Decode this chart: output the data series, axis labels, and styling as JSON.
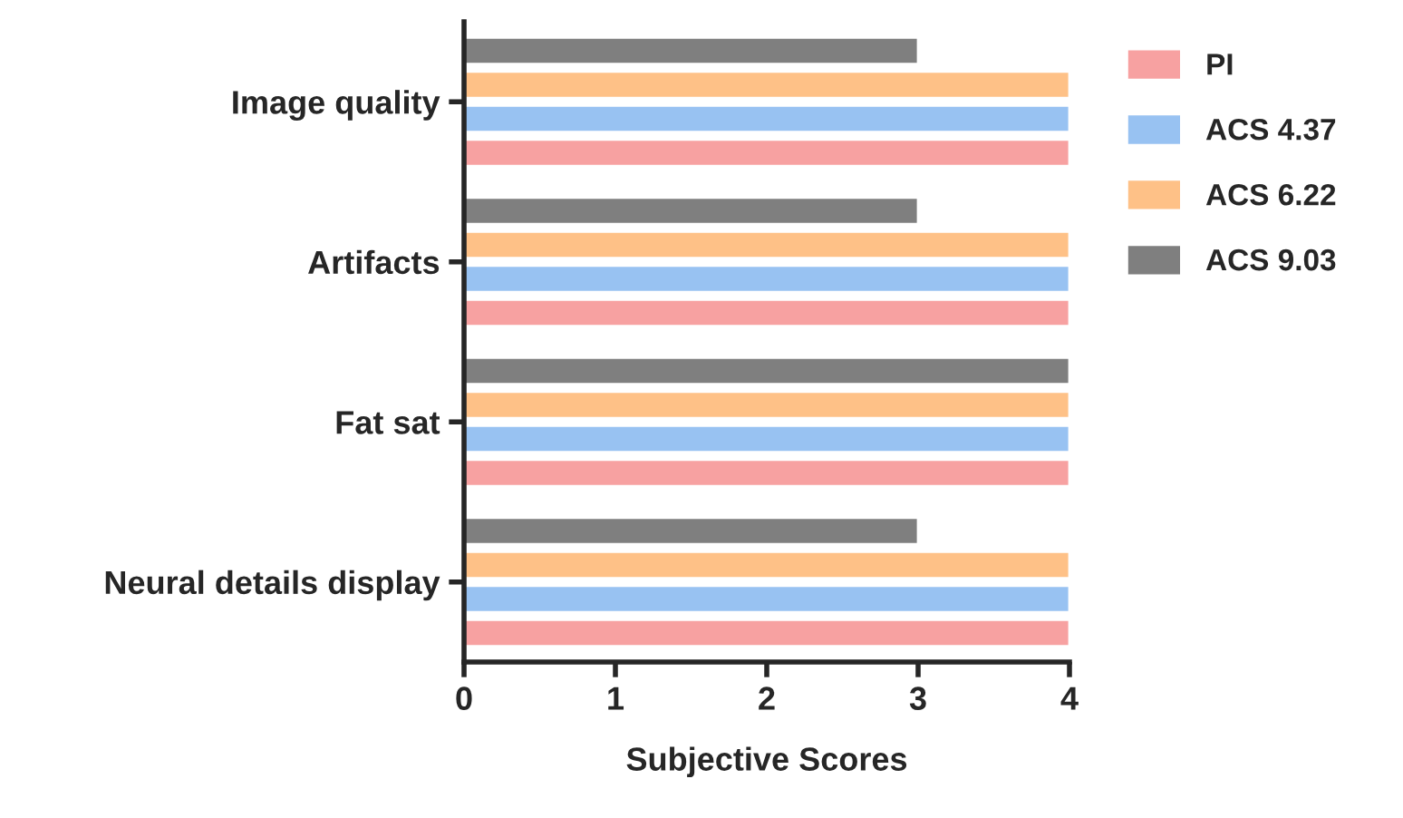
{
  "chart_data": {
    "type": "bar",
    "orientation": "horizontal",
    "xlabel": "Subjective Scores",
    "categories": [
      "Image quality",
      "Artifacts",
      "Fat sat",
      "Neural details display"
    ],
    "series": [
      {
        "name": "PI",
        "color": "#f7a1a1",
        "values": [
          4,
          4,
          4,
          4
        ]
      },
      {
        "name": "ACS 4.37",
        "color": "#98c2f2",
        "values": [
          4,
          4,
          4,
          4
        ]
      },
      {
        "name": "ACS 6.22",
        "color": "#fec187",
        "values": [
          4,
          4,
          4,
          4
        ]
      },
      {
        "name": "ACS 9.03",
        "color": "#7f7f7f",
        "values": [
          3,
          3,
          4,
          3
        ]
      }
    ],
    "xlim": [
      0,
      4
    ],
    "xticks": [
      0,
      1,
      2,
      3,
      4
    ],
    "grid": false,
    "legend": "top right"
  }
}
